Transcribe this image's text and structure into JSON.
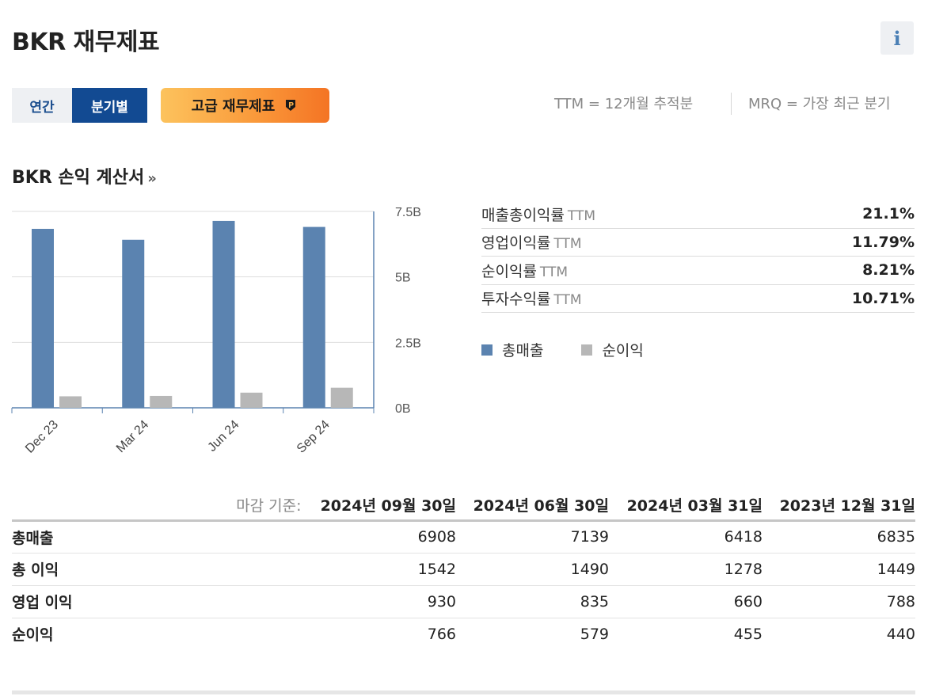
{
  "page_title": "BKR 재무제표",
  "info_icon_glyph": "i",
  "period_toggle": {
    "annual": "연간",
    "quarterly": "분기별",
    "selected": "분기별"
  },
  "premium_button": {
    "label": "고급 재무제표",
    "icon": "investingpro-badge-icon"
  },
  "notes": {
    "ttm": "TTM = 12개월 추적분",
    "mrq": "MRQ = 가장 최근 분기"
  },
  "income_section": {
    "title": "BKR 손익 계산서",
    "chevron": "»"
  },
  "chart_data": {
    "type": "bar",
    "categories": [
      "Dec 23",
      "Mar 24",
      "Jun 24",
      "Sep 24"
    ],
    "series": [
      {
        "name": "총매출",
        "color": "#5b83b0",
        "values": [
          6835,
          6418,
          7139,
          6908
        ]
      },
      {
        "name": "순이익",
        "color": "#b7b7b7",
        "values": [
          440,
          455,
          579,
          766
        ]
      }
    ],
    "unit": "M",
    "ylim": [
      0,
      7500
    ],
    "ytick_values": [
      0,
      2500,
      5000,
      7500
    ],
    "ytick_labels": [
      "0B",
      "2.5B",
      "5B",
      "7.5B"
    ],
    "y_axis_side": "right",
    "grid": true,
    "legend_placement": "bottom-right"
  },
  "ratios": [
    {
      "label": "매출총이익률",
      "suffix": "TTM",
      "value": "21.1%"
    },
    {
      "label": "영업이익률",
      "suffix": "TTM",
      "value": "11.79%"
    },
    {
      "label": "순이익률",
      "suffix": "TTM",
      "value": "8.21%"
    },
    {
      "label": "투자수익률",
      "suffix": "TTM",
      "value": "10.71%"
    }
  ],
  "legend": [
    {
      "label": "총매출",
      "color": "#5b83b0"
    },
    {
      "label": "순이익",
      "color": "#b7b7b7"
    }
  ],
  "table": {
    "as_of_label": "마감 기준:",
    "periods": [
      "2024년 09월 30일",
      "2024년 06월 30일",
      "2024년 03월 31일",
      "2023년 12월 31일"
    ],
    "rows": [
      {
        "label": "총매출",
        "values": [
          "6908",
          "7139",
          "6418",
          "6835"
        ]
      },
      {
        "label": "총 이익",
        "values": [
          "1542",
          "1490",
          "1278",
          "1449"
        ]
      },
      {
        "label": "영업 이익",
        "values": [
          "930",
          "835",
          "660",
          "788"
        ]
      },
      {
        "label": "순이익",
        "values": [
          "766",
          "579",
          "455",
          "440"
        ]
      }
    ]
  }
}
